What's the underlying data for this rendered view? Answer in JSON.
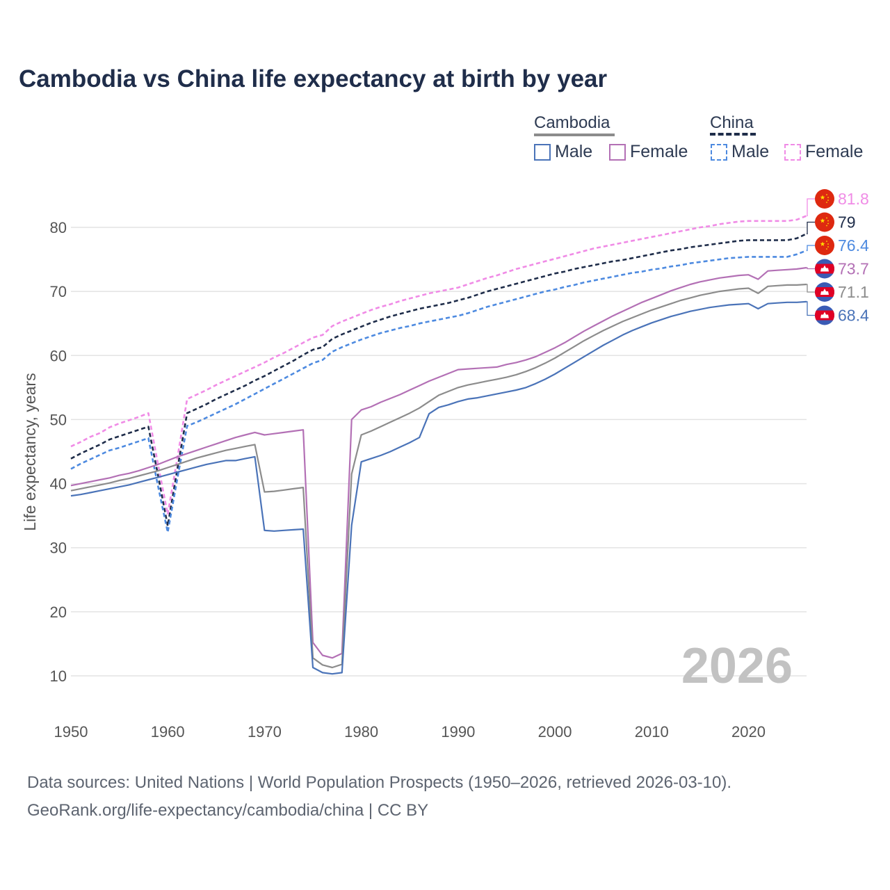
{
  "chart_data": {
    "type": "line",
    "title": "Cambodia vs China life expectancy at birth by year",
    "ylabel": "Life expectancy, years",
    "xlabel": "",
    "xlim": [
      1950,
      2026
    ],
    "ylim": [
      5,
      90
    ],
    "x_ticks": [
      "1950",
      "1960",
      "1970",
      "1980",
      "1990",
      "2000",
      "2010",
      "2020"
    ],
    "y_ticks": [
      "10",
      "20",
      "30",
      "40",
      "50",
      "60",
      "70",
      "80"
    ],
    "year_label": "2026",
    "legend": {
      "groups": [
        {
          "name": "Cambodia",
          "items": [
            "Male",
            "Female"
          ]
        },
        {
          "name": "China",
          "items": [
            "Male",
            "Female"
          ]
        }
      ]
    },
    "x": [
      1950,
      1951,
      1952,
      1953,
      1954,
      1955,
      1956,
      1957,
      1958,
      1959,
      1960,
      1961,
      1962,
      1963,
      1964,
      1965,
      1966,
      1967,
      1968,
      1969,
      1970,
      1971,
      1972,
      1973,
      1974,
      1975,
      1976,
      1977,
      1978,
      1979,
      1980,
      1981,
      1982,
      1983,
      1984,
      1985,
      1986,
      1987,
      1988,
      1989,
      1990,
      1991,
      1992,
      1993,
      1994,
      1995,
      1996,
      1997,
      1998,
      1999,
      2000,
      2001,
      2002,
      2003,
      2004,
      2005,
      2006,
      2007,
      2008,
      2009,
      2010,
      2011,
      2012,
      2013,
      2014,
      2015,
      2016,
      2017,
      2018,
      2019,
      2020,
      2021,
      2022,
      2023,
      2024,
      2025,
      2026
    ],
    "series": [
      {
        "name": "China Female",
        "country": "China",
        "sex": "Female",
        "color": "#f08be6",
        "dashed": true,
        "end_label": "81.8",
        "values": [
          45.8,
          46.5,
          47.3,
          47.9,
          48.8,
          49.4,
          49.9,
          50.4,
          51.0,
          43.0,
          35.2,
          44.0,
          53.2,
          53.9,
          54.6,
          55.4,
          56.1,
          56.8,
          57.5,
          58.2,
          58.9,
          59.7,
          60.4,
          61.2,
          62.0,
          62.8,
          63.2,
          64.6,
          65.3,
          65.9,
          66.5,
          67.1,
          67.6,
          68.0,
          68.5,
          68.9,
          69.3,
          69.7,
          70.0,
          70.3,
          70.6,
          71.1,
          71.6,
          72.1,
          72.5,
          73.0,
          73.5,
          73.9,
          74.3,
          74.7,
          75.1,
          75.5,
          75.9,
          76.3,
          76.7,
          77.0,
          77.3,
          77.6,
          77.9,
          78.2,
          78.5,
          78.8,
          79.1,
          79.4,
          79.7,
          80.0,
          80.2,
          80.5,
          80.7,
          80.9,
          81.0,
          81.0,
          81.0,
          81.0,
          81.0,
          81.2,
          81.8
        ]
      },
      {
        "name": "China Total",
        "country": "China",
        "sex": "Total",
        "color": "#1f2d4a",
        "dashed": true,
        "end_label": "79",
        "values": [
          43.9,
          44.7,
          45.4,
          46.1,
          46.9,
          47.4,
          47.9,
          48.4,
          48.9,
          41.3,
          33.4,
          42.3,
          51.0,
          51.7,
          52.4,
          53.2,
          53.9,
          54.6,
          55.3,
          56.1,
          56.8,
          57.6,
          58.4,
          59.2,
          60.1,
          60.9,
          61.3,
          62.6,
          63.3,
          63.9,
          64.5,
          65.1,
          65.6,
          66.1,
          66.5,
          66.9,
          67.3,
          67.6,
          67.9,
          68.2,
          68.6,
          69.0,
          69.5,
          70.0,
          70.4,
          70.8,
          71.2,
          71.6,
          72.0,
          72.4,
          72.8,
          73.1,
          73.5,
          73.8,
          74.1,
          74.4,
          74.7,
          74.9,
          75.2,
          75.5,
          75.8,
          76.1,
          76.4,
          76.6,
          76.9,
          77.1,
          77.3,
          77.5,
          77.7,
          77.9,
          78.0,
          78.0,
          78.0,
          78.0,
          78.0,
          78.3,
          79.0
        ]
      },
      {
        "name": "China Male",
        "country": "China",
        "sex": "Male",
        "color": "#4d8ae0",
        "dashed": true,
        "end_label": "76.4",
        "values": [
          42.3,
          43.1,
          43.8,
          44.5,
          45.2,
          45.6,
          46.1,
          46.6,
          47.1,
          39.6,
          32.4,
          40.8,
          49.0,
          49.6,
          50.3,
          51.0,
          51.7,
          52.4,
          53.2,
          54.0,
          54.8,
          55.6,
          56.4,
          57.2,
          58.0,
          58.8,
          59.3,
          60.6,
          61.3,
          61.9,
          62.5,
          63.0,
          63.5,
          63.9,
          64.3,
          64.6,
          65.0,
          65.3,
          65.6,
          65.9,
          66.2,
          66.6,
          67.1,
          67.6,
          68.0,
          68.4,
          68.8,
          69.2,
          69.6,
          70.0,
          70.3,
          70.7,
          71.0,
          71.4,
          71.7,
          72.0,
          72.3,
          72.6,
          72.9,
          73.1,
          73.4,
          73.6,
          73.9,
          74.1,
          74.4,
          74.6,
          74.8,
          75.0,
          75.2,
          75.3,
          75.4,
          75.4,
          75.4,
          75.4,
          75.4,
          75.8,
          76.4
        ]
      },
      {
        "name": "Cambodia Female",
        "country": "Cambodia",
        "sex": "Female",
        "color": "#b370b5",
        "dashed": false,
        "end_label": "73.7",
        "values": [
          39.7,
          40.0,
          40.3,
          40.6,
          40.9,
          41.3,
          41.6,
          42.0,
          42.5,
          43.0,
          43.6,
          44.2,
          44.7,
          45.2,
          45.7,
          46.2,
          46.7,
          47.2,
          47.6,
          48.0,
          47.6,
          47.8,
          48.0,
          48.2,
          48.4,
          15.2,
          13.2,
          12.8,
          13.5,
          50.0,
          51.5,
          52.0,
          52.7,
          53.3,
          53.9,
          54.6,
          55.3,
          56.0,
          56.6,
          57.2,
          57.8,
          57.9,
          58.0,
          58.1,
          58.2,
          58.6,
          58.9,
          59.3,
          59.8,
          60.5,
          61.2,
          62.0,
          62.9,
          63.8,
          64.6,
          65.4,
          66.2,
          66.9,
          67.6,
          68.3,
          68.9,
          69.5,
          70.1,
          70.6,
          71.1,
          71.5,
          71.8,
          72.1,
          72.3,
          72.5,
          72.6,
          71.9,
          73.2,
          73.3,
          73.4,
          73.5,
          73.7
        ]
      },
      {
        "name": "Cambodia Total",
        "country": "Cambodia",
        "sex": "Total",
        "color": "#8c8c8c",
        "dashed": false,
        "end_label": "71.1",
        "values": [
          38.9,
          39.2,
          39.5,
          39.8,
          40.1,
          40.5,
          40.8,
          41.2,
          41.6,
          42.0,
          42.5,
          43.0,
          43.5,
          44.0,
          44.4,
          44.8,
          45.2,
          45.5,
          45.8,
          46.1,
          38.7,
          38.8,
          39.0,
          39.2,
          39.4,
          12.8,
          11.7,
          11.3,
          11.8,
          41.5,
          47.6,
          48.2,
          48.9,
          49.6,
          50.3,
          51.0,
          51.8,
          52.8,
          53.8,
          54.4,
          55.0,
          55.4,
          55.7,
          56.0,
          56.3,
          56.6,
          57.0,
          57.5,
          58.1,
          58.8,
          59.6,
          60.5,
          61.4,
          62.3,
          63.1,
          63.9,
          64.6,
          65.3,
          65.9,
          66.5,
          67.1,
          67.6,
          68.1,
          68.6,
          69.0,
          69.4,
          69.7,
          70.0,
          70.2,
          70.4,
          70.5,
          69.7,
          70.8,
          70.9,
          71.0,
          71.0,
          71.1
        ]
      },
      {
        "name": "Cambodia Male",
        "country": "Cambodia",
        "sex": "Male",
        "color": "#4a73b8",
        "dashed": false,
        "end_label": "68.4",
        "values": [
          38.1,
          38.3,
          38.6,
          38.9,
          39.2,
          39.5,
          39.8,
          40.2,
          40.6,
          41.0,
          41.4,
          41.8,
          42.2,
          42.6,
          43.0,
          43.3,
          43.6,
          43.6,
          43.9,
          44.2,
          32.7,
          32.6,
          32.7,
          32.8,
          32.9,
          11.3,
          10.5,
          10.3,
          10.5,
          33.5,
          43.4,
          43.9,
          44.4,
          45.0,
          45.7,
          46.4,
          47.2,
          50.9,
          51.9,
          52.3,
          52.8,
          53.2,
          53.4,
          53.7,
          54.0,
          54.3,
          54.6,
          55.0,
          55.6,
          56.3,
          57.1,
          58.0,
          58.9,
          59.8,
          60.7,
          61.6,
          62.4,
          63.2,
          63.9,
          64.5,
          65.1,
          65.6,
          66.1,
          66.5,
          66.9,
          67.2,
          67.5,
          67.7,
          67.9,
          68.0,
          68.1,
          67.3,
          68.1,
          68.2,
          68.3,
          68.3,
          68.4
        ]
      }
    ]
  },
  "source": {
    "line1": "Data sources: United Nations | World Population Prospects (1950–2026, retrieved 2026-03-10).",
    "line2": "GeoRank.org/life-expectancy/cambodia/china | CC BY"
  },
  "colors": {
    "cambodia_group": "#8c8c8c",
    "china_group": "#1f2d4a",
    "cambodia_male": "#4a73b8",
    "cambodia_female": "#b370b5",
    "china_male": "#4d8ae0",
    "china_female": "#f08be6",
    "china_flag": "#de2910",
    "cambodia_flag_blue": "#3a5bb5",
    "cambodia_flag_red": "#e00025"
  }
}
